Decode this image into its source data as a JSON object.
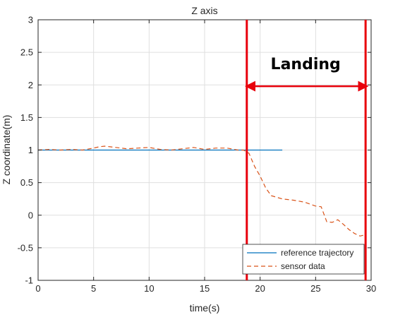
{
  "chart_data": {
    "type": "line",
    "title": "Z axis",
    "xlabel": "time(s)",
    "ylabel": "Z coordinate(m)",
    "xlim": [
      0,
      30
    ],
    "ylim": [
      -1,
      3
    ],
    "xticks": [
      0,
      5,
      10,
      15,
      20,
      25,
      30
    ],
    "yticks": [
      -1,
      -0.5,
      0,
      0.5,
      1,
      1.5,
      2,
      2.5,
      3
    ],
    "xtick_labels": [
      "0",
      "5",
      "10",
      "15",
      "20",
      "25",
      "30"
    ],
    "ytick_labels": [
      "-1",
      "-0.5",
      "0",
      "0.5",
      "1",
      "1.5",
      "2",
      "2.5",
      "3"
    ],
    "grid": true,
    "legend_position": "bottom-right",
    "series": [
      {
        "name": "reference trajectory",
        "style": "solid",
        "color": "#0072BD",
        "x": [
          0,
          22
        ],
        "y": [
          1,
          1
        ]
      },
      {
        "name": "sensor data",
        "style": "dashed",
        "color": "#D95319",
        "x": [
          0,
          1,
          2,
          3,
          4,
          5,
          5.5,
          6,
          6.5,
          7,
          8,
          9,
          10,
          11,
          12,
          13,
          14,
          15,
          16,
          17,
          18,
          18.5,
          19,
          19.5,
          20,
          20.5,
          21,
          22,
          23,
          24,
          25,
          25.5,
          26,
          26.5,
          27,
          27.5,
          28,
          28.5,
          29,
          29.5
        ],
        "y": [
          1.0,
          1.01,
          1.0,
          1.01,
          1.0,
          1.03,
          1.05,
          1.06,
          1.05,
          1.04,
          1.02,
          1.03,
          1.04,
          1.01,
          1.0,
          1.02,
          1.04,
          1.01,
          1.03,
          1.03,
          1.0,
          1.0,
          0.95,
          0.75,
          0.6,
          0.42,
          0.3,
          0.25,
          0.23,
          0.2,
          0.14,
          0.13,
          -0.1,
          -0.11,
          -0.07,
          -0.14,
          -0.22,
          -0.28,
          -0.32,
          -0.3
        ]
      }
    ],
    "annotations": [
      {
        "type": "vline",
        "x": 18.8,
        "color": "#E8000B"
      },
      {
        "type": "vline",
        "x": 29.5,
        "color": "#E8000B"
      },
      {
        "type": "double-arrow",
        "x1": 19.1,
        "x2": 29.3,
        "y": 1.98,
        "color": "#E8000B"
      },
      {
        "type": "text",
        "text": "Landing",
        "x": 24.1,
        "y": 2.24
      }
    ]
  }
}
